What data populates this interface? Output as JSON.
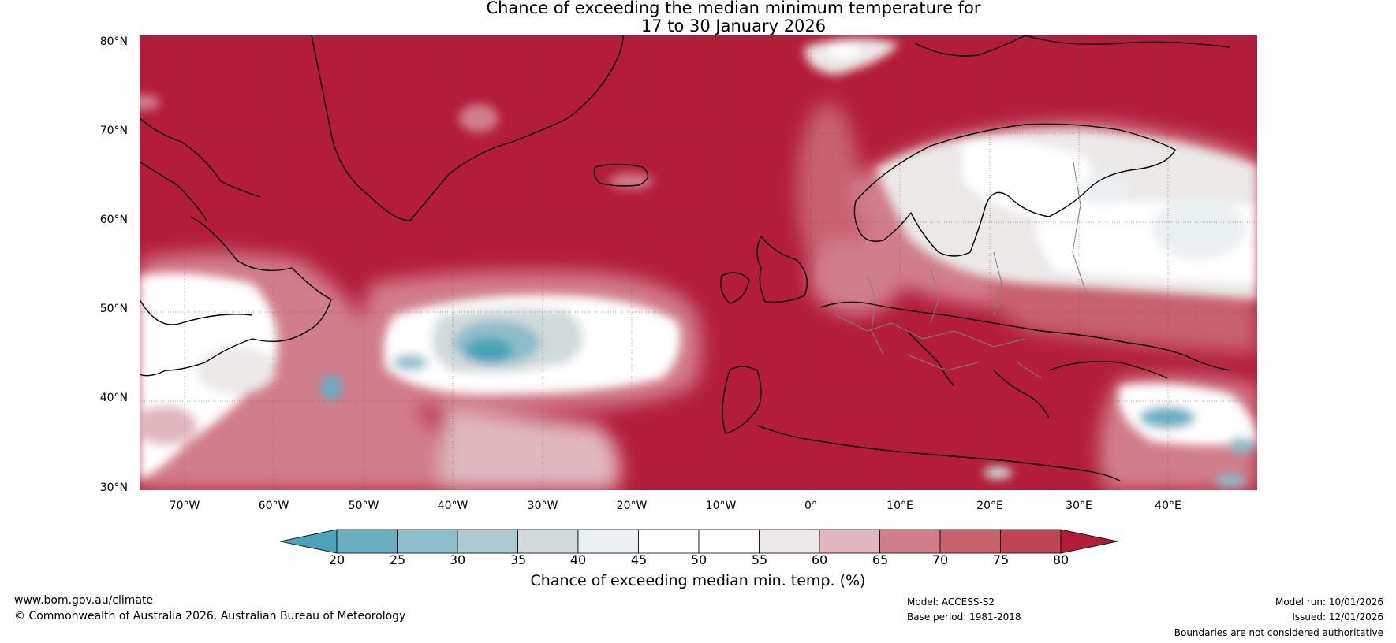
{
  "title": {
    "line1": "Chance of exceeding the median minimum temperature for",
    "line2": "17 to 30 January 2026"
  },
  "map": {
    "lat_labels": [
      "80°N",
      "70°N",
      "60°N",
      "50°N",
      "40°N",
      "30°N"
    ],
    "lon_labels": [
      "70°W",
      "60°W",
      "50°W",
      "40°W",
      "30°W",
      "20°W",
      "10°W",
      "0°",
      "10°E",
      "20°E",
      "30°E",
      "40°E"
    ],
    "extent": {
      "lon": [
        -75,
        50
      ],
      "lat": [
        30,
        81
      ]
    }
  },
  "colorbar": {
    "ticks": [
      "20",
      "25",
      "30",
      "35",
      "40",
      "45",
      "50",
      "55",
      "60",
      "65",
      "70",
      "75",
      "80"
    ],
    "colors": [
      "#4aa3b8",
      "#6aaec0",
      "#8cbdc9",
      "#aecbd1",
      "#d2dadc",
      "#ebf1f3",
      "#ffffff",
      "#ffffff",
      "#ebe8e7",
      "#e0b7bf",
      "#d17e8c",
      "#c76270",
      "#bf4555",
      "#b31c3a"
    ],
    "label": "Chance of exceeding median min. temp. (%)"
  },
  "footer": {
    "url": "www.bom.gov.au/climate",
    "copyright": "© Commonwealth of Australia 2026, Australian Bureau of Meteorology",
    "model": "Model: ACCESS-S2",
    "base_period": "Base period: 1981-2018",
    "model_run": "Model run: 10/01/2026",
    "issued": "Issued: 12/01/2026",
    "boundaries": "Boundaries are not considered authoritative"
  }
}
